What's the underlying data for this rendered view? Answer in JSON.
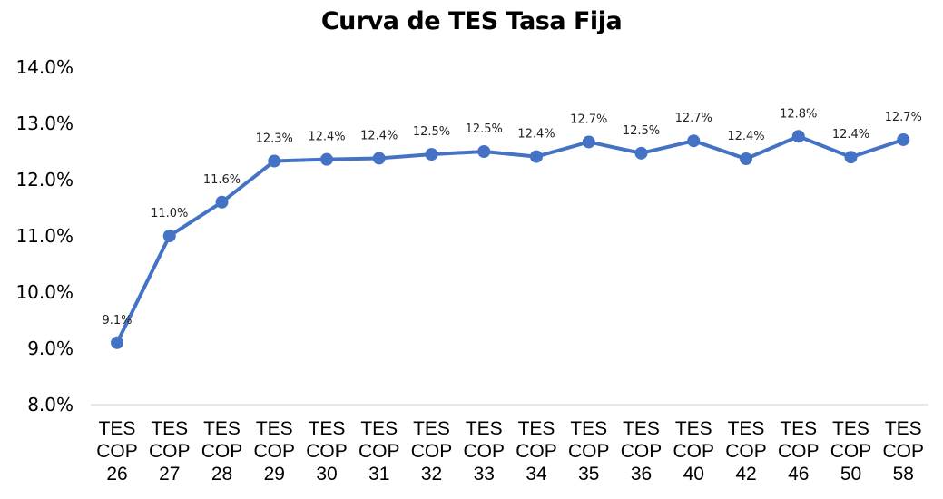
{
  "chart_data": {
    "type": "line",
    "title": "Curva de TES Tasa Fija",
    "categories": [
      [
        "TES",
        "COP",
        "26"
      ],
      [
        "TES",
        "COP",
        "27"
      ],
      [
        "TES",
        "COP",
        "28"
      ],
      [
        "TES",
        "COP",
        "29"
      ],
      [
        "TES",
        "COP",
        "30"
      ],
      [
        "TES",
        "COP",
        "31"
      ],
      [
        "TES",
        "COP",
        "32"
      ],
      [
        "TES",
        "COP",
        "33"
      ],
      [
        "TES",
        "COP",
        "34"
      ],
      [
        "TES",
        "COP",
        "35"
      ],
      [
        "TES",
        "COP",
        "36"
      ],
      [
        "TES",
        "COP",
        "40"
      ],
      [
        "TES",
        "COP",
        "42"
      ],
      [
        "TES",
        "COP",
        "46"
      ],
      [
        "TES",
        "COP",
        "50"
      ],
      [
        "TES",
        "COP",
        "58"
      ]
    ],
    "values": [
      9.1,
      11.0,
      11.6,
      12.33,
      12.36,
      12.38,
      12.45,
      12.5,
      12.41,
      12.67,
      12.47,
      12.69,
      12.37,
      12.77,
      12.4,
      12.71
    ],
    "data_labels": [
      "9.1%",
      "11.0%",
      "11.6%",
      "12.3%",
      "12.4%",
      "12.4%",
      "12.5%",
      "12.5%",
      "12.4%",
      "12.7%",
      "12.5%",
      "12.7%",
      "12.4%",
      "12.8%",
      "12.4%",
      "12.7%"
    ],
    "yticks": [
      "8.0%",
      "9.0%",
      "10.0%",
      "11.0%",
      "12.0%",
      "13.0%",
      "14.0%"
    ],
    "ylim": [
      8.0,
      14.0
    ],
    "xlabel": "",
    "ylabel": "",
    "grid": false,
    "legend": "none",
    "colors": {
      "line": "#4472C4",
      "axis": "#D9D9D9",
      "text": "#000000"
    }
  }
}
